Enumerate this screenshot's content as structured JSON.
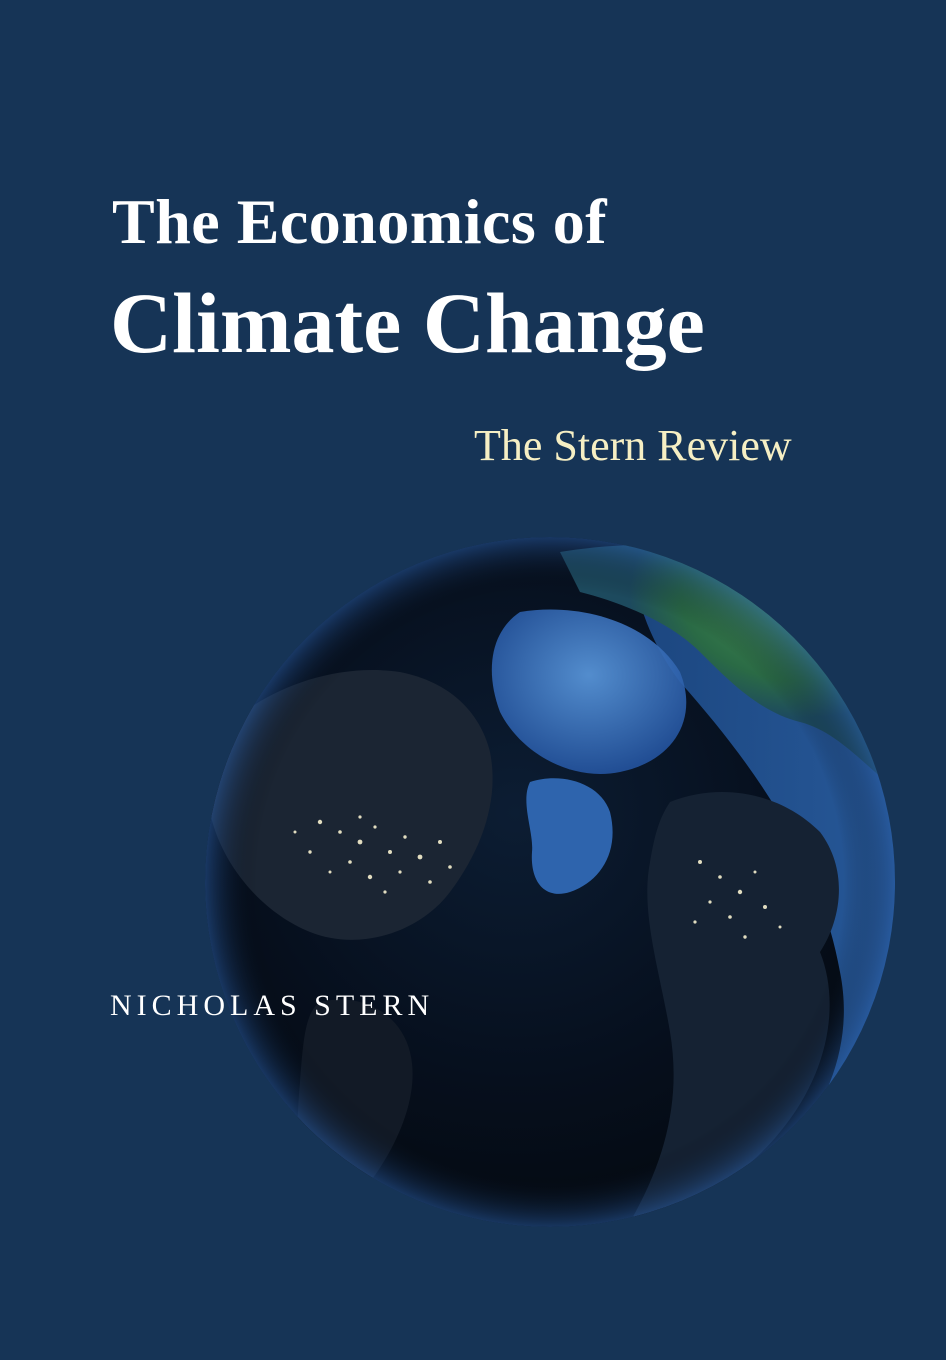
{
  "cover": {
    "title_line1": "The Economics of",
    "title_line2": "Climate Change",
    "subtitle": "The Stern Review",
    "author": "NICHOLAS STERN"
  },
  "colors": {
    "background": "#163456",
    "title": "#ffffff",
    "subtitle": "#f6efc4",
    "globe_ocean": "#0a1a2e",
    "globe_land_green": "#3a8a4a",
    "globe_ice": "#3b78c4"
  },
  "image": {
    "globe": "earth-globe-at-night"
  }
}
